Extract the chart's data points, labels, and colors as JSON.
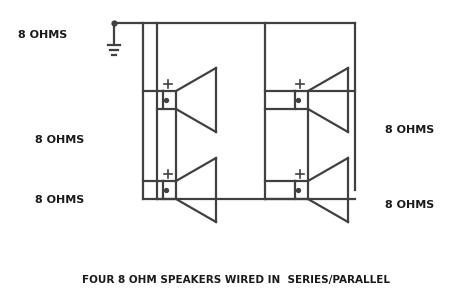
{
  "title": "FOUR 8 OHM SPEAKERS WIRED IN  SERIES/PARALLEL",
  "background_color": "#ffffff",
  "line_color": "#404040",
  "text_color": "#1a1a1a",
  "labels": {
    "top_left": "8 OHMS",
    "mid_left": "8 OHMS",
    "bot_left": "8 OHMS",
    "top_right": "8 OHMS",
    "bot_right": "8 OHMS"
  },
  "figsize": [
    4.73,
    3.01
  ],
  "dpi": 100
}
